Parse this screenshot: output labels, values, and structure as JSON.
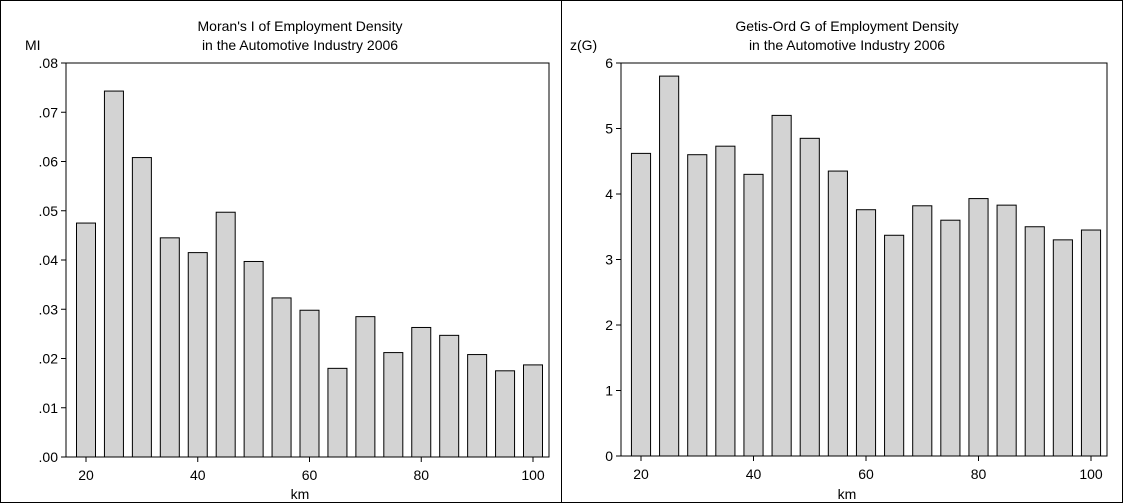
{
  "chart_data": [
    {
      "type": "bar",
      "title": [
        "Moran's I of Employment Density",
        "in the Automotive Industry 2006"
      ],
      "xlabel": "km",
      "ylabel": "MI",
      "x": [
        20,
        25,
        30,
        35,
        40,
        45,
        50,
        55,
        60,
        65,
        70,
        75,
        80,
        85,
        90,
        95,
        100
      ],
      "values": [
        0.0475,
        0.0743,
        0.0608,
        0.0445,
        0.0415,
        0.0497,
        0.0397,
        0.0323,
        0.0298,
        0.018,
        0.0285,
        0.0212,
        0.0263,
        0.0247,
        0.0208,
        0.0175,
        0.0187
      ],
      "ylim": [
        0,
        0.08
      ],
      "yticks": [
        0,
        0.01,
        0.02,
        0.03,
        0.04,
        0.05,
        0.06,
        0.07,
        0.08
      ],
      "ytick_labels": [
        ".00",
        ".01",
        ".02",
        ".03",
        ".04",
        ".05",
        ".06",
        ".07",
        ".08"
      ],
      "xticks": [
        20,
        40,
        60,
        80,
        100
      ],
      "xtick_labels": [
        "20",
        "40",
        "60",
        "80",
        "100"
      ],
      "bar_color": "#d3d3d3",
      "grid": false
    },
    {
      "type": "bar",
      "title": [
        "Getis-Ord G of Employment Density",
        "in the Automotive Industry 2006"
      ],
      "xlabel": "km",
      "ylabel": "z(G)",
      "x": [
        20,
        25,
        30,
        35,
        40,
        45,
        50,
        55,
        60,
        65,
        70,
        75,
        80,
        85,
        90,
        95,
        100
      ],
      "values": [
        4.62,
        5.8,
        4.6,
        4.73,
        4.3,
        5.2,
        4.85,
        4.35,
        3.76,
        3.37,
        3.82,
        3.6,
        3.93,
        3.83,
        3.5,
        3.3,
        3.45
      ],
      "ylim": [
        0,
        6
      ],
      "yticks": [
        0,
        1,
        2,
        3,
        4,
        5,
        6
      ],
      "ytick_labels": [
        "0",
        "1",
        "2",
        "3",
        "4",
        "5",
        "6"
      ],
      "xticks": [
        20,
        40,
        60,
        80,
        100
      ],
      "xtick_labels": [
        "20",
        "40",
        "60",
        "80",
        "100"
      ],
      "bar_color": "#d3d3d3",
      "grid": false
    }
  ]
}
